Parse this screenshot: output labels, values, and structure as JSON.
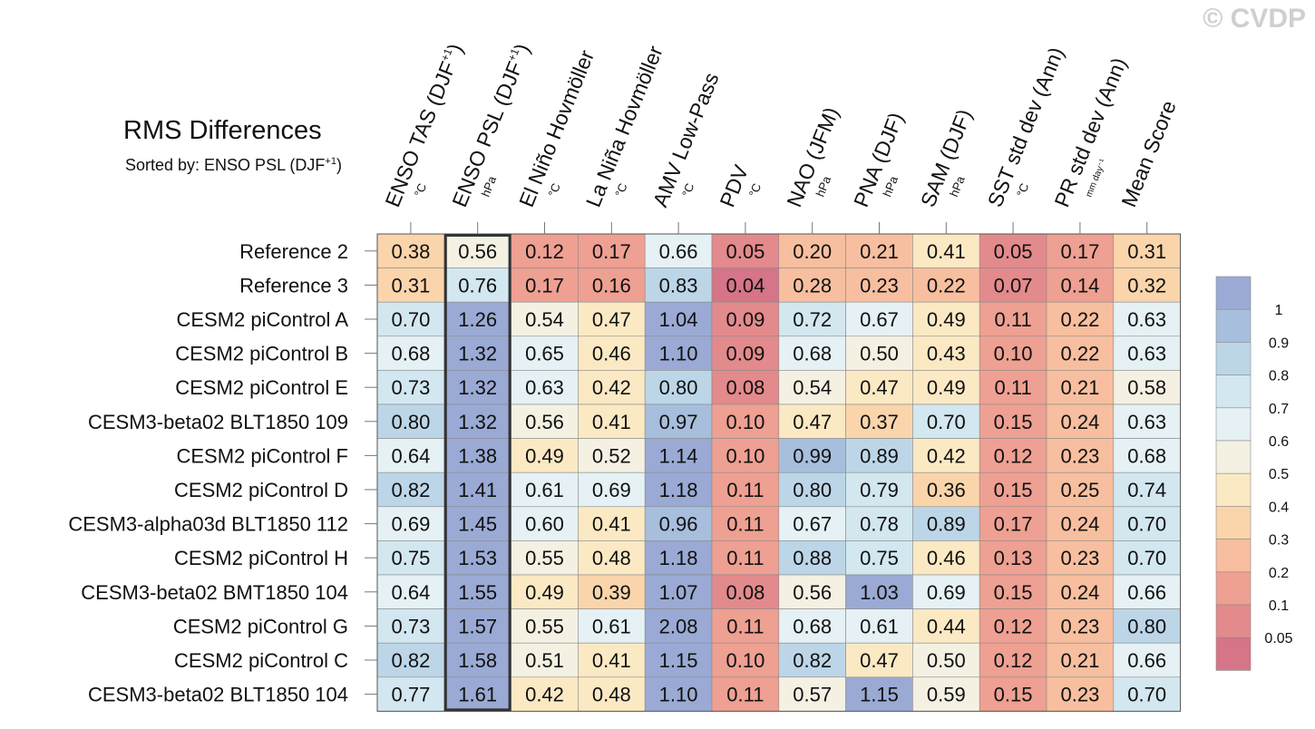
{
  "watermark": "© CVDP",
  "chart_data": {
    "type": "heatmap",
    "title": "RMS Differences",
    "subtitle_prefix": "Sorted by: ENSO PSL (DJF",
    "subtitle_sup": "+1",
    "subtitle_suffix": ")",
    "highlight_column": 1,
    "columns": [
      {
        "label": "ENSO TAS (DJF",
        "sup": "+1",
        "suffix": ")",
        "unit": "°C"
      },
      {
        "label": "ENSO PSL (DJF",
        "sup": "+1",
        "suffix": ")",
        "unit": "hPa"
      },
      {
        "label": "El Niño Hovmöller",
        "sup": "",
        "suffix": "",
        "unit": "°C"
      },
      {
        "label": "La Niña Hovmöller",
        "sup": "",
        "suffix": "",
        "unit": "°C"
      },
      {
        "label": "AMV Low-Pass",
        "sup": "",
        "suffix": "",
        "unit": "°C"
      },
      {
        "label": "PDV",
        "sup": "",
        "suffix": "",
        "unit": "°C"
      },
      {
        "label": "NAO (JFM)",
        "sup": "",
        "suffix": "",
        "unit": "hPa"
      },
      {
        "label": "PNA (DJF)",
        "sup": "",
        "suffix": "",
        "unit": "hPa"
      },
      {
        "label": "SAM (DJF)",
        "sup": "",
        "suffix": "",
        "unit": "hPa"
      },
      {
        "label": "SST std dev (Ann)",
        "sup": "",
        "suffix": "",
        "unit": "°C"
      },
      {
        "label": "PR std dev (Ann)",
        "sup": "",
        "suffix": "",
        "unit": "mm day⁻¹"
      },
      {
        "label": "Mean Score",
        "sup": "",
        "suffix": "",
        "unit": ""
      }
    ],
    "rows": [
      {
        "name": "Reference 2",
        "values": [
          0.38,
          0.56,
          0.12,
          0.17,
          0.66,
          0.05,
          0.2,
          0.21,
          0.41,
          0.05,
          0.17,
          0.31
        ]
      },
      {
        "name": "Reference 3",
        "values": [
          0.31,
          0.76,
          0.17,
          0.16,
          0.83,
          0.04,
          0.28,
          0.23,
          0.22,
          0.07,
          0.14,
          0.32
        ]
      },
      {
        "name": "CESM2 piControl A",
        "values": [
          0.7,
          1.26,
          0.54,
          0.47,
          1.04,
          0.09,
          0.72,
          0.67,
          0.49,
          0.11,
          0.22,
          0.63
        ]
      },
      {
        "name": "CESM2 piControl B",
        "values": [
          0.68,
          1.32,
          0.65,
          0.46,
          1.1,
          0.09,
          0.68,
          0.5,
          0.43,
          0.1,
          0.22,
          0.63
        ]
      },
      {
        "name": "CESM2 piControl E",
        "values": [
          0.73,
          1.32,
          0.63,
          0.42,
          0.8,
          0.08,
          0.54,
          0.47,
          0.49,
          0.11,
          0.21,
          0.58
        ]
      },
      {
        "name": "CESM3-beta02 BLT1850 109",
        "values": [
          0.8,
          1.32,
          0.56,
          0.41,
          0.97,
          0.1,
          0.47,
          0.37,
          0.7,
          0.15,
          0.24,
          0.63
        ]
      },
      {
        "name": "CESM2 piControl F",
        "values": [
          0.64,
          1.38,
          0.49,
          0.52,
          1.14,
          0.1,
          0.99,
          0.89,
          0.42,
          0.12,
          0.23,
          0.68
        ]
      },
      {
        "name": "CESM2 piControl D",
        "values": [
          0.82,
          1.41,
          0.61,
          0.69,
          1.18,
          0.11,
          0.8,
          0.79,
          0.36,
          0.15,
          0.25,
          0.74
        ]
      },
      {
        "name": "CESM3-alpha03d BLT1850 112",
        "values": [
          0.69,
          1.45,
          0.6,
          0.41,
          0.96,
          0.11,
          0.67,
          0.78,
          0.89,
          0.17,
          0.24,
          0.7
        ]
      },
      {
        "name": "CESM2 piControl H",
        "values": [
          0.75,
          1.53,
          0.55,
          0.48,
          1.18,
          0.11,
          0.88,
          0.75,
          0.46,
          0.13,
          0.23,
          0.7
        ]
      },
      {
        "name": "CESM3-beta02 BMT1850 104",
        "values": [
          0.64,
          1.55,
          0.49,
          0.39,
          1.07,
          0.08,
          0.56,
          1.03,
          0.69,
          0.15,
          0.24,
          0.66
        ]
      },
      {
        "name": "CESM2 piControl G",
        "values": [
          0.73,
          1.57,
          0.55,
          0.61,
          2.08,
          0.11,
          0.68,
          0.61,
          0.44,
          0.12,
          0.23,
          0.8
        ]
      },
      {
        "name": "CESM2 piControl C",
        "values": [
          0.82,
          1.58,
          0.51,
          0.41,
          1.15,
          0.1,
          0.82,
          0.47,
          0.5,
          0.12,
          0.21,
          0.66
        ]
      },
      {
        "name": "CESM3-beta02 BLT1850 104",
        "values": [
          0.77,
          1.61,
          0.42,
          0.48,
          1.1,
          0.11,
          0.57,
          1.15,
          0.59,
          0.15,
          0.23,
          0.7
        ]
      }
    ],
    "colorbar": {
      "levels": [
        "1",
        "0.9",
        "0.8",
        "0.7",
        "0.6",
        "0.5",
        "0.4",
        "0.3",
        "0.2",
        "0.1",
        "0.05"
      ],
      "colors": [
        "#9aaad4",
        "#a8bedd",
        "#bcd6e8",
        "#d3e7f0",
        "#e5f1f4",
        "#f4f1e3",
        "#fbe9c4",
        "#fad5ab",
        "#f7bf9f",
        "#eea092",
        "#e38a8c",
        "#d67488"
      ]
    }
  }
}
